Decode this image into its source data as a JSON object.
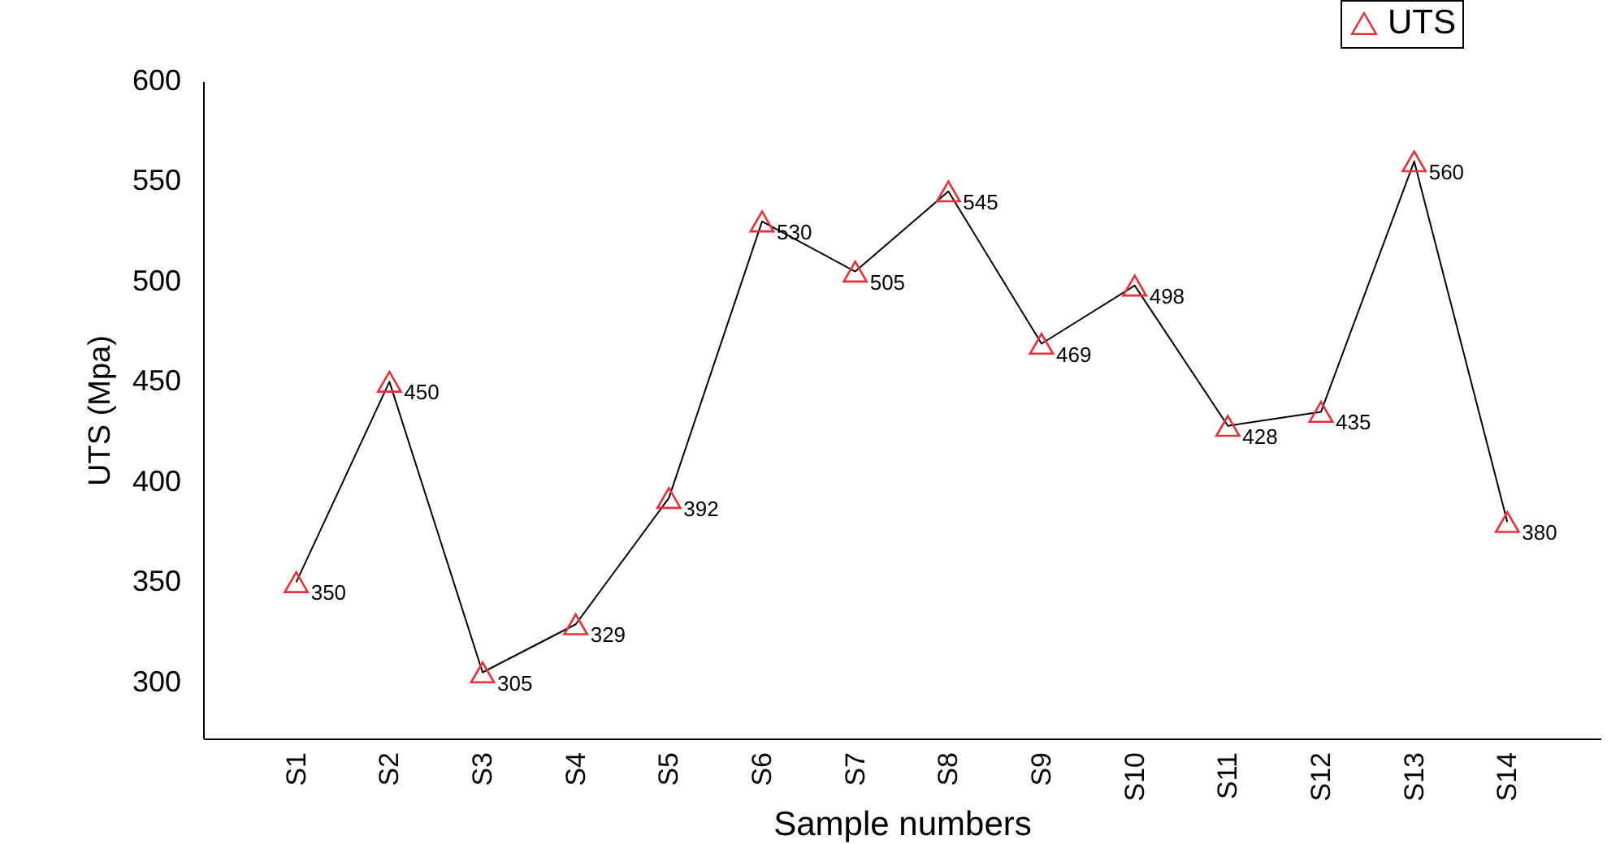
{
  "chart_data": {
    "type": "line",
    "xlabel": "Sample numbers",
    "ylabel": "UTS (Mpa)",
    "categories": [
      "S1",
      "S2",
      "S3",
      "S4",
      "S5",
      "S6",
      "S7",
      "S8",
      "S9",
      "S10",
      "S11",
      "S12",
      "S13",
      "S14"
    ],
    "series": [
      {
        "name": "UTS",
        "color": "#e8303a",
        "values": [
          350,
          450,
          305,
          329,
          392,
          530,
          505,
          545,
          469,
          498,
          428,
          435,
          560,
          380
        ]
      }
    ],
    "ylim": [
      272,
      600
    ],
    "yticks": [
      300,
      350,
      400,
      450,
      500,
      550,
      600
    ],
    "data_labels": true,
    "marker": "triangle",
    "line_style": "solid",
    "legend": "top right",
    "grid": false
  }
}
